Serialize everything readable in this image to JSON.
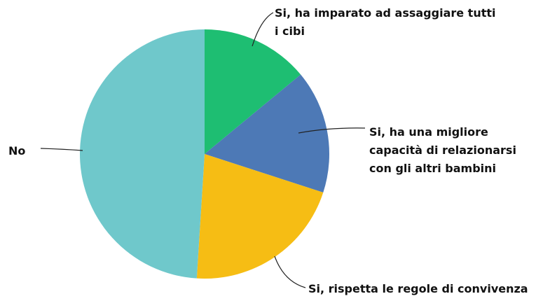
{
  "chart_data": {
    "type": "pie",
    "categories": [
      "Si, ha imparato ad assaggiare tutti i cibi",
      "Si, ha una migliore capacità di relazionarsi con gli altri bambini",
      "Si, rispetta le regole di convivenza",
      "No"
    ],
    "values": [
      14,
      16,
      21,
      49
    ],
    "colors": [
      "#1ebe72",
      "#4d79b6",
      "#f6bd14",
      "#6fc8cb"
    ]
  }
}
